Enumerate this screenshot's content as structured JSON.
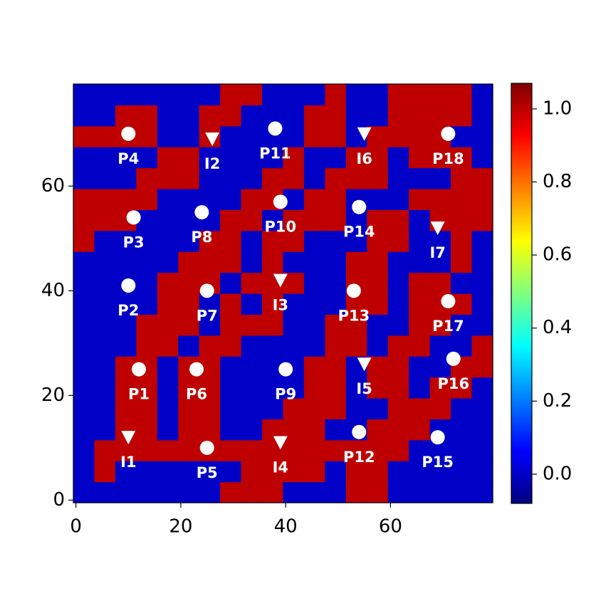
{
  "chart_data": {
    "type": "heatmap",
    "colormap": "jet",
    "origin": "lower",
    "xlim": [
      -0.5,
      79.5
    ],
    "ylim": [
      -0.5,
      79.5
    ],
    "xticks": [
      0,
      20,
      40,
      60
    ],
    "yticks": [
      0,
      20,
      40,
      60
    ],
    "vlim": [
      -0.08,
      1.07
    ],
    "colorbar_ticks": [
      {
        "value": 0,
        "label": "0.0"
      },
      {
        "value": 0.2,
        "label": "0.2"
      },
      {
        "value": 0.4,
        "label": "0.4"
      },
      {
        "value": 0.6,
        "label": "0.6"
      },
      {
        "value": 0.8,
        "label": "0.8"
      },
      {
        "value": 1,
        "label": "1.0"
      }
    ],
    "z": [
      [
        0,
        0,
        0,
        0,
        0,
        0,
        0,
        1,
        1,
        1,
        0,
        0,
        0,
        1,
        1,
        0,
        0,
        0,
        0,
        0
      ],
      [
        0,
        1,
        0,
        0,
        0,
        0,
        0,
        0,
        1,
        1,
        1,
        1,
        0,
        1,
        1,
        0,
        0,
        0,
        0,
        0
      ],
      [
        0,
        1,
        1,
        1,
        1,
        1,
        1,
        1,
        1,
        1,
        1,
        1,
        1,
        1,
        1,
        1,
        0,
        0,
        0,
        0
      ],
      [
        0,
        0,
        1,
        1,
        0,
        1,
        1,
        0,
        0,
        1,
        1,
        1,
        0,
        0,
        1,
        1,
        1,
        0,
        0,
        0
      ],
      [
        0,
        0,
        1,
        1,
        0,
        1,
        1,
        0,
        0,
        0,
        1,
        1,
        1,
        0,
        0,
        1,
        1,
        1,
        0,
        0
      ],
      [
        0,
        0,
        1,
        1,
        0,
        1,
        1,
        0,
        0,
        0,
        0,
        1,
        1,
        0,
        1,
        1,
        0,
        1,
        1,
        0
      ],
      [
        0,
        0,
        1,
        1,
        0,
        1,
        1,
        0,
        0,
        0,
        0,
        1,
        1,
        0,
        1,
        1,
        0,
        0,
        1,
        1
      ],
      [
        0,
        0,
        0,
        1,
        1,
        0,
        1,
        1,
        0,
        0,
        0,
        0,
        1,
        1,
        0,
        1,
        1,
        0,
        0,
        1
      ],
      [
        0,
        0,
        0,
        1,
        1,
        1,
        0,
        1,
        1,
        1,
        0,
        0,
        1,
        1,
        0,
        0,
        1,
        1,
        0,
        0
      ],
      [
        0,
        0,
        0,
        0,
        1,
        1,
        0,
        1,
        0,
        1,
        0,
        0,
        0,
        1,
        1,
        0,
        1,
        1,
        1,
        0
      ],
      [
        0,
        0,
        0,
        0,
        1,
        1,
        1,
        0,
        1,
        1,
        1,
        0,
        0,
        1,
        1,
        0,
        1,
        1,
        0,
        0
      ],
      [
        0,
        0,
        0,
        0,
        0,
        1,
        1,
        1,
        0,
        1,
        0,
        0,
        0,
        1,
        1,
        0,
        0,
        0,
        1,
        0
      ],
      [
        1,
        0,
        0,
        0,
        0,
        0,
        1,
        1,
        0,
        1,
        1,
        0,
        0,
        0,
        1,
        1,
        0,
        0,
        1,
        0
      ],
      [
        1,
        1,
        1,
        0,
        0,
        0,
        0,
        1,
        1,
        0,
        1,
        1,
        1,
        0,
        1,
        1,
        0,
        1,
        1,
        1
      ],
      [
        1,
        1,
        1,
        1,
        0,
        0,
        0,
        0,
        1,
        1,
        0,
        1,
        1,
        0,
        0,
        0,
        1,
        1,
        1,
        1
      ],
      [
        0,
        0,
        0,
        1,
        1,
        1,
        0,
        0,
        0,
        1,
        1,
        0,
        1,
        1,
        1,
        0,
        0,
        0,
        1,
        1
      ],
      [
        0,
        0,
        0,
        0,
        1,
        1,
        0,
        0,
        0,
        0,
        1,
        0,
        0,
        1,
        1,
        0,
        1,
        1,
        1,
        0
      ],
      [
        1,
        1,
        1,
        1,
        0,
        0,
        1,
        0,
        0,
        0,
        0,
        1,
        1,
        0,
        1,
        1,
        1,
        1,
        0,
        0
      ],
      [
        0,
        0,
        1,
        1,
        0,
        0,
        1,
        1,
        0,
        0,
        0,
        1,
        1,
        0,
        0,
        1,
        1,
        1,
        1,
        0
      ],
      [
        0,
        0,
        0,
        0,
        0,
        0,
        0,
        1,
        1,
        0,
        0,
        0,
        1,
        0,
        0,
        1,
        1,
        1,
        1,
        0
      ]
    ],
    "wells": [
      {
        "marker": "circle",
        "color": "#ffffff",
        "labels": [
          "P1",
          "P2",
          "P3",
          "P4",
          "P5",
          "P6",
          "P7",
          "P8",
          "P9",
          "P10",
          "P11",
          "P12",
          "P13",
          "P14",
          "P15",
          "P16",
          "P17",
          "P18"
        ],
        "x": [
          12,
          10,
          11,
          10,
          25,
          23,
          25,
          24,
          40,
          39,
          38,
          54,
          53,
          54,
          69,
          72,
          71,
          71
        ],
        "y": [
          25,
          41,
          54,
          70,
          10,
          25,
          40,
          55,
          25,
          57,
          71,
          13,
          40,
          56,
          12,
          27,
          38,
          70
        ]
      },
      {
        "marker": "triangle",
        "color": "#ffffff",
        "labels": [
          "I1",
          "I2",
          "I3",
          "I4",
          "I5",
          "I6",
          "I7"
        ],
        "x": [
          10,
          26,
          39,
          39,
          55,
          55,
          69
        ],
        "y": [
          12,
          69,
          42,
          11,
          26,
          70,
          52
        ]
      }
    ]
  }
}
